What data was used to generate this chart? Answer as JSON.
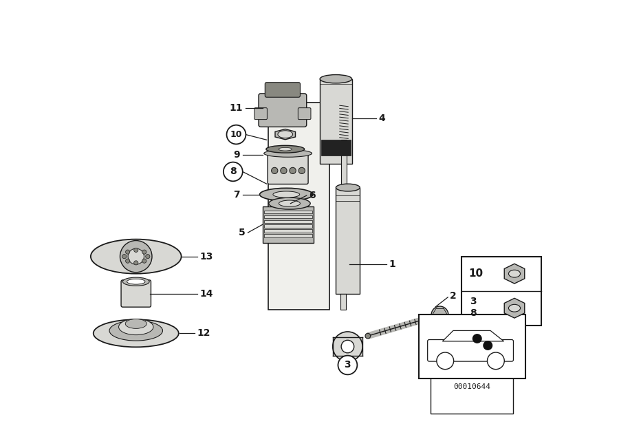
{
  "bg_color": "#ffffff",
  "line_color": "#1a1a1a",
  "fill_light": "#d8d8d4",
  "fill_mid": "#b8b8b4",
  "fill_dark": "#888880",
  "diagram_code": "00010644"
}
